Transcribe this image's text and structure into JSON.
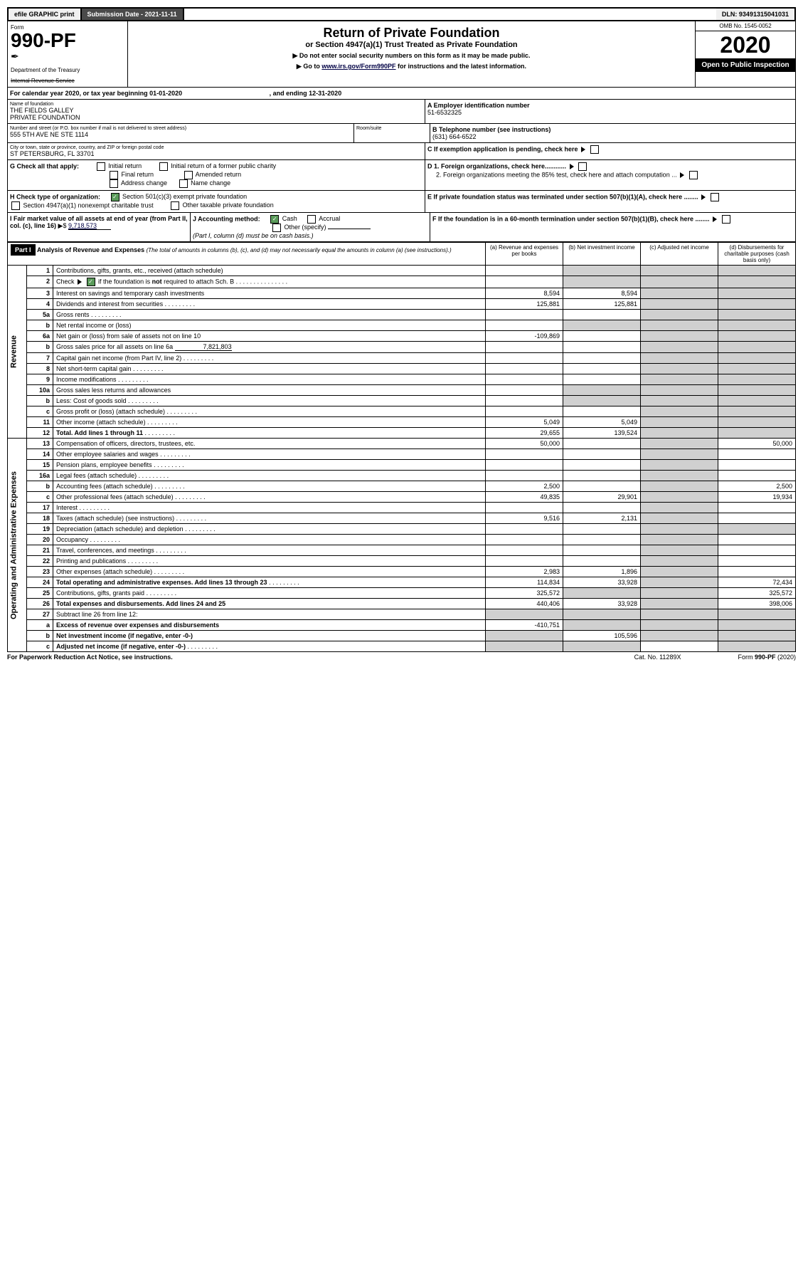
{
  "topbar": {
    "efile": "efile GRAPHIC print",
    "subdate_label": "Submission Date - ",
    "subdate": "2021-11-11",
    "dln_label": "DLN: ",
    "dln": "93491315041031"
  },
  "header": {
    "form_label": "Form",
    "form_num": "990-PF",
    "dept": "Department of the Treasury",
    "irs": "Internal Revenue Service",
    "title": "Return of Private Foundation",
    "subtitle": "or Section 4947(a)(1) Trust Treated as Private Foundation",
    "instr1": "▶ Do not enter social security numbers on this form as it may be made public.",
    "instr2a": "▶ Go to ",
    "instr2_link": "www.irs.gov/Form990PF",
    "instr2b": " for instructions and the latest information.",
    "omb": "OMB No. 1545-0052",
    "year": "2020",
    "open": "Open to Public Inspection"
  },
  "calrow": {
    "prefix": "For calendar year 2020, or tax year beginning ",
    "begin": "01-01-2020",
    "mid": ", and ending ",
    "end": "12-31-2020"
  },
  "entity": {
    "name_label": "Name of foundation",
    "name1": "THE FIELDS GALLEY",
    "name2": "PRIVATE FOUNDATION",
    "addr_label": "Number and street (or P.O. box number if mail is not delivered to street address)",
    "addr": "555 5TH AVE NE STE 1114",
    "room_label": "Room/suite",
    "city_label": "City or town, state or province, country, and ZIP or foreign postal code",
    "city": "ST PETERSBURG, FL  33701",
    "a_label": "A Employer identification number",
    "ein": "51-6532325",
    "b_label": "B Telephone number (see instructions)",
    "phone": "(631) 664-6522",
    "c_label": "C If exemption application is pending, check here",
    "d1": "D 1. Foreign organizations, check here............",
    "d2": "2. Foreign organizations meeting the 85% test, check here and attach computation ...",
    "e_label": "E  If private foundation status was terminated under section 507(b)(1)(A), check here ........",
    "f_label": "F  If the foundation is in a 60-month termination under section 507(b)(1)(B), check here ........"
  },
  "g": {
    "label": "G Check all that apply:",
    "opts": [
      "Initial return",
      "Initial return of a former public charity",
      "Final return",
      "Amended return",
      "Address change",
      "Name change"
    ]
  },
  "h": {
    "label": "H Check type of organization:",
    "opt1": "Section 501(c)(3) exempt private foundation",
    "opt2": "Section 4947(a)(1) nonexempt charitable trust",
    "opt3": "Other taxable private foundation"
  },
  "i": {
    "label": "I Fair market value of all assets at end of year (from Part II, col. (c), line 16)",
    "arrow": "▶$",
    "value": "9,718,573"
  },
  "j": {
    "label": "J Accounting method:",
    "cash": "Cash",
    "accrual": "Accrual",
    "other": "Other (specify)",
    "note": "(Part I, column (d) must be on cash basis.)"
  },
  "part1": {
    "title_label": "Part I",
    "title": "Analysis of Revenue and Expenses",
    "note": "(The total of amounts in columns (b), (c), and (d) may not necessarily equal the amounts in column (a) (see instructions).)",
    "col_a": "(a)   Revenue and expenses per books",
    "col_b": "(b)   Net investment income",
    "col_c": "(c)   Adjusted net income",
    "col_d": "(d)   Disbursements for charitable purposes (cash basis only)",
    "side_rev": "Revenue",
    "side_exp": "Operating and Administrative Expenses"
  },
  "lines": [
    {
      "n": "1",
      "t": "Contributions, gifts, grants, etc., received (attach schedule)"
    },
    {
      "n": "2",
      "t": "Check ▶ ☑ if the foundation is not required to attach Sch. B",
      "hasCheck": true,
      "dotted": true
    },
    {
      "n": "3",
      "t": "Interest on savings and temporary cash investments",
      "a": "8,594",
      "b": "8,594"
    },
    {
      "n": "4",
      "t": "Dividends and interest from securities",
      "a": "125,881",
      "b": "125,881",
      "dotted": true
    },
    {
      "n": "5a",
      "t": "Gross rents",
      "dotted": true
    },
    {
      "n": "b",
      "t": "Net rental income or (loss)",
      "blank": true
    },
    {
      "n": "6a",
      "t": "Net gain or (loss) from sale of assets not on line 10",
      "a": "-109,869"
    },
    {
      "n": "b",
      "t": "Gross sales price for all assets on line 6a",
      "inline": "7,821,803"
    },
    {
      "n": "7",
      "t": "Capital gain net income (from Part IV, line 2)",
      "dotted": true
    },
    {
      "n": "8",
      "t": "Net short-term capital gain",
      "dotted": true
    },
    {
      "n": "9",
      "t": "Income modifications",
      "dotted": true
    },
    {
      "n": "10a",
      "t": "Gross sales less returns and allowances",
      "blank": true
    },
    {
      "n": "b",
      "t": "Less: Cost of goods sold",
      "blank": true,
      "dotted": true
    },
    {
      "n": "c",
      "t": "Gross profit or (loss) (attach schedule)",
      "dotted": true
    },
    {
      "n": "11",
      "t": "Other income (attach schedule)",
      "a": "5,049",
      "b": "5,049",
      "dotted": true
    },
    {
      "n": "12",
      "t": "Total. Add lines 1 through 11",
      "a": "29,655",
      "b": "139,524",
      "bold": true,
      "dotted": true
    },
    {
      "n": "13",
      "t": "Compensation of officers, directors, trustees, etc.",
      "a": "50,000",
      "d": "50,000"
    },
    {
      "n": "14",
      "t": "Other employee salaries and wages",
      "dotted": true
    },
    {
      "n": "15",
      "t": "Pension plans, employee benefits",
      "dotted": true
    },
    {
      "n": "16a",
      "t": "Legal fees (attach schedule)",
      "dotted": true
    },
    {
      "n": "b",
      "t": "Accounting fees (attach schedule)",
      "a": "2,500",
      "d": "2,500",
      "dotted": true
    },
    {
      "n": "c",
      "t": "Other professional fees (attach schedule)",
      "a": "49,835",
      "b": "29,901",
      "d": "19,934",
      "dotted": true
    },
    {
      "n": "17",
      "t": "Interest",
      "dotted": true
    },
    {
      "n": "18",
      "t": "Taxes (attach schedule) (see instructions)",
      "a": "9,516",
      "b": "2,131",
      "dotted": true
    },
    {
      "n": "19",
      "t": "Depreciation (attach schedule) and depletion",
      "dotted": true
    },
    {
      "n": "20",
      "t": "Occupancy",
      "dotted": true
    },
    {
      "n": "21",
      "t": "Travel, conferences, and meetings",
      "dotted": true
    },
    {
      "n": "22",
      "t": "Printing and publications",
      "dotted": true
    },
    {
      "n": "23",
      "t": "Other expenses (attach schedule)",
      "a": "2,983",
      "b": "1,896",
      "dotted": true
    },
    {
      "n": "24",
      "t": "Total operating and administrative expenses. Add lines 13 through 23",
      "a": "114,834",
      "b": "33,928",
      "d": "72,434",
      "bold": true,
      "dotted": true
    },
    {
      "n": "25",
      "t": "Contributions, gifts, grants paid",
      "a": "325,572",
      "d": "325,572",
      "dotted": true
    },
    {
      "n": "26",
      "t": "Total expenses and disbursements. Add lines 24 and 25",
      "a": "440,406",
      "b": "33,928",
      "d": "398,006",
      "bold": true
    },
    {
      "n": "27",
      "t": "Subtract line 26 from line 12:"
    },
    {
      "n": "a",
      "t": "Excess of revenue over expenses and disbursements",
      "a": "-410,751",
      "bold": true
    },
    {
      "n": "b",
      "t": "Net investment income (if negative, enter -0-)",
      "b": "105,596",
      "bold": true
    },
    {
      "n": "c",
      "t": "Adjusted net income (if negative, enter -0-)",
      "bold": true,
      "dotted": true
    }
  ],
  "footer": {
    "left": "For Paperwork Reduction Act Notice, see instructions.",
    "mid": "Cat. No. 11289X",
    "right": "Form 990-PF (2020)"
  }
}
